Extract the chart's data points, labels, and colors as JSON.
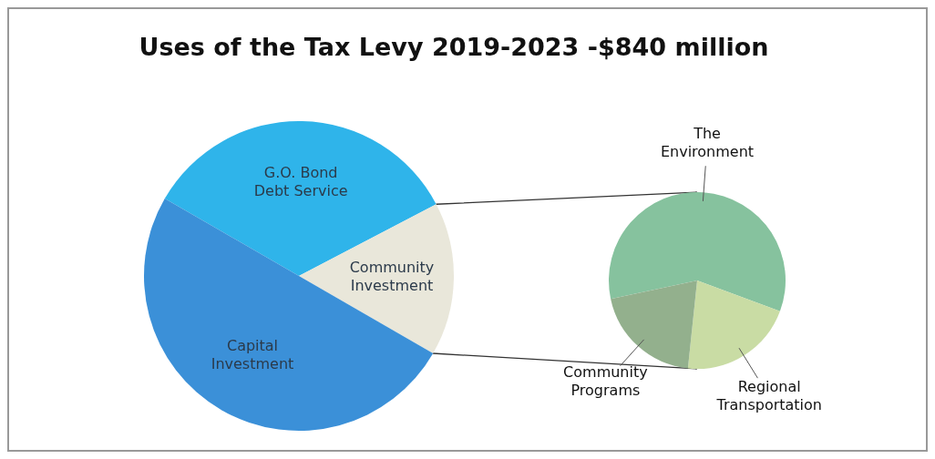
{
  "chart_data": [
    {
      "type": "pie",
      "title": "Uses of the Tax Levy 2019-2023 -$840 million",
      "categories": [
        "G.O. Bond Debt Service",
        "Community Investment",
        "Capital Investment"
      ],
      "values": [
        34,
        16,
        50
      ],
      "colors": [
        "#2fb4ea",
        "#e9e7da",
        "#3b90d8"
      ],
      "legend": false
    },
    {
      "type": "pie",
      "categories": [
        "The Environment",
        "Regional Transportation",
        "Community Programs"
      ],
      "values": [
        59,
        21,
        20
      ],
      "colors": [
        "#86c29e",
        "#c9dca4",
        "#93b08d"
      ],
      "legend": false
    }
  ]
}
